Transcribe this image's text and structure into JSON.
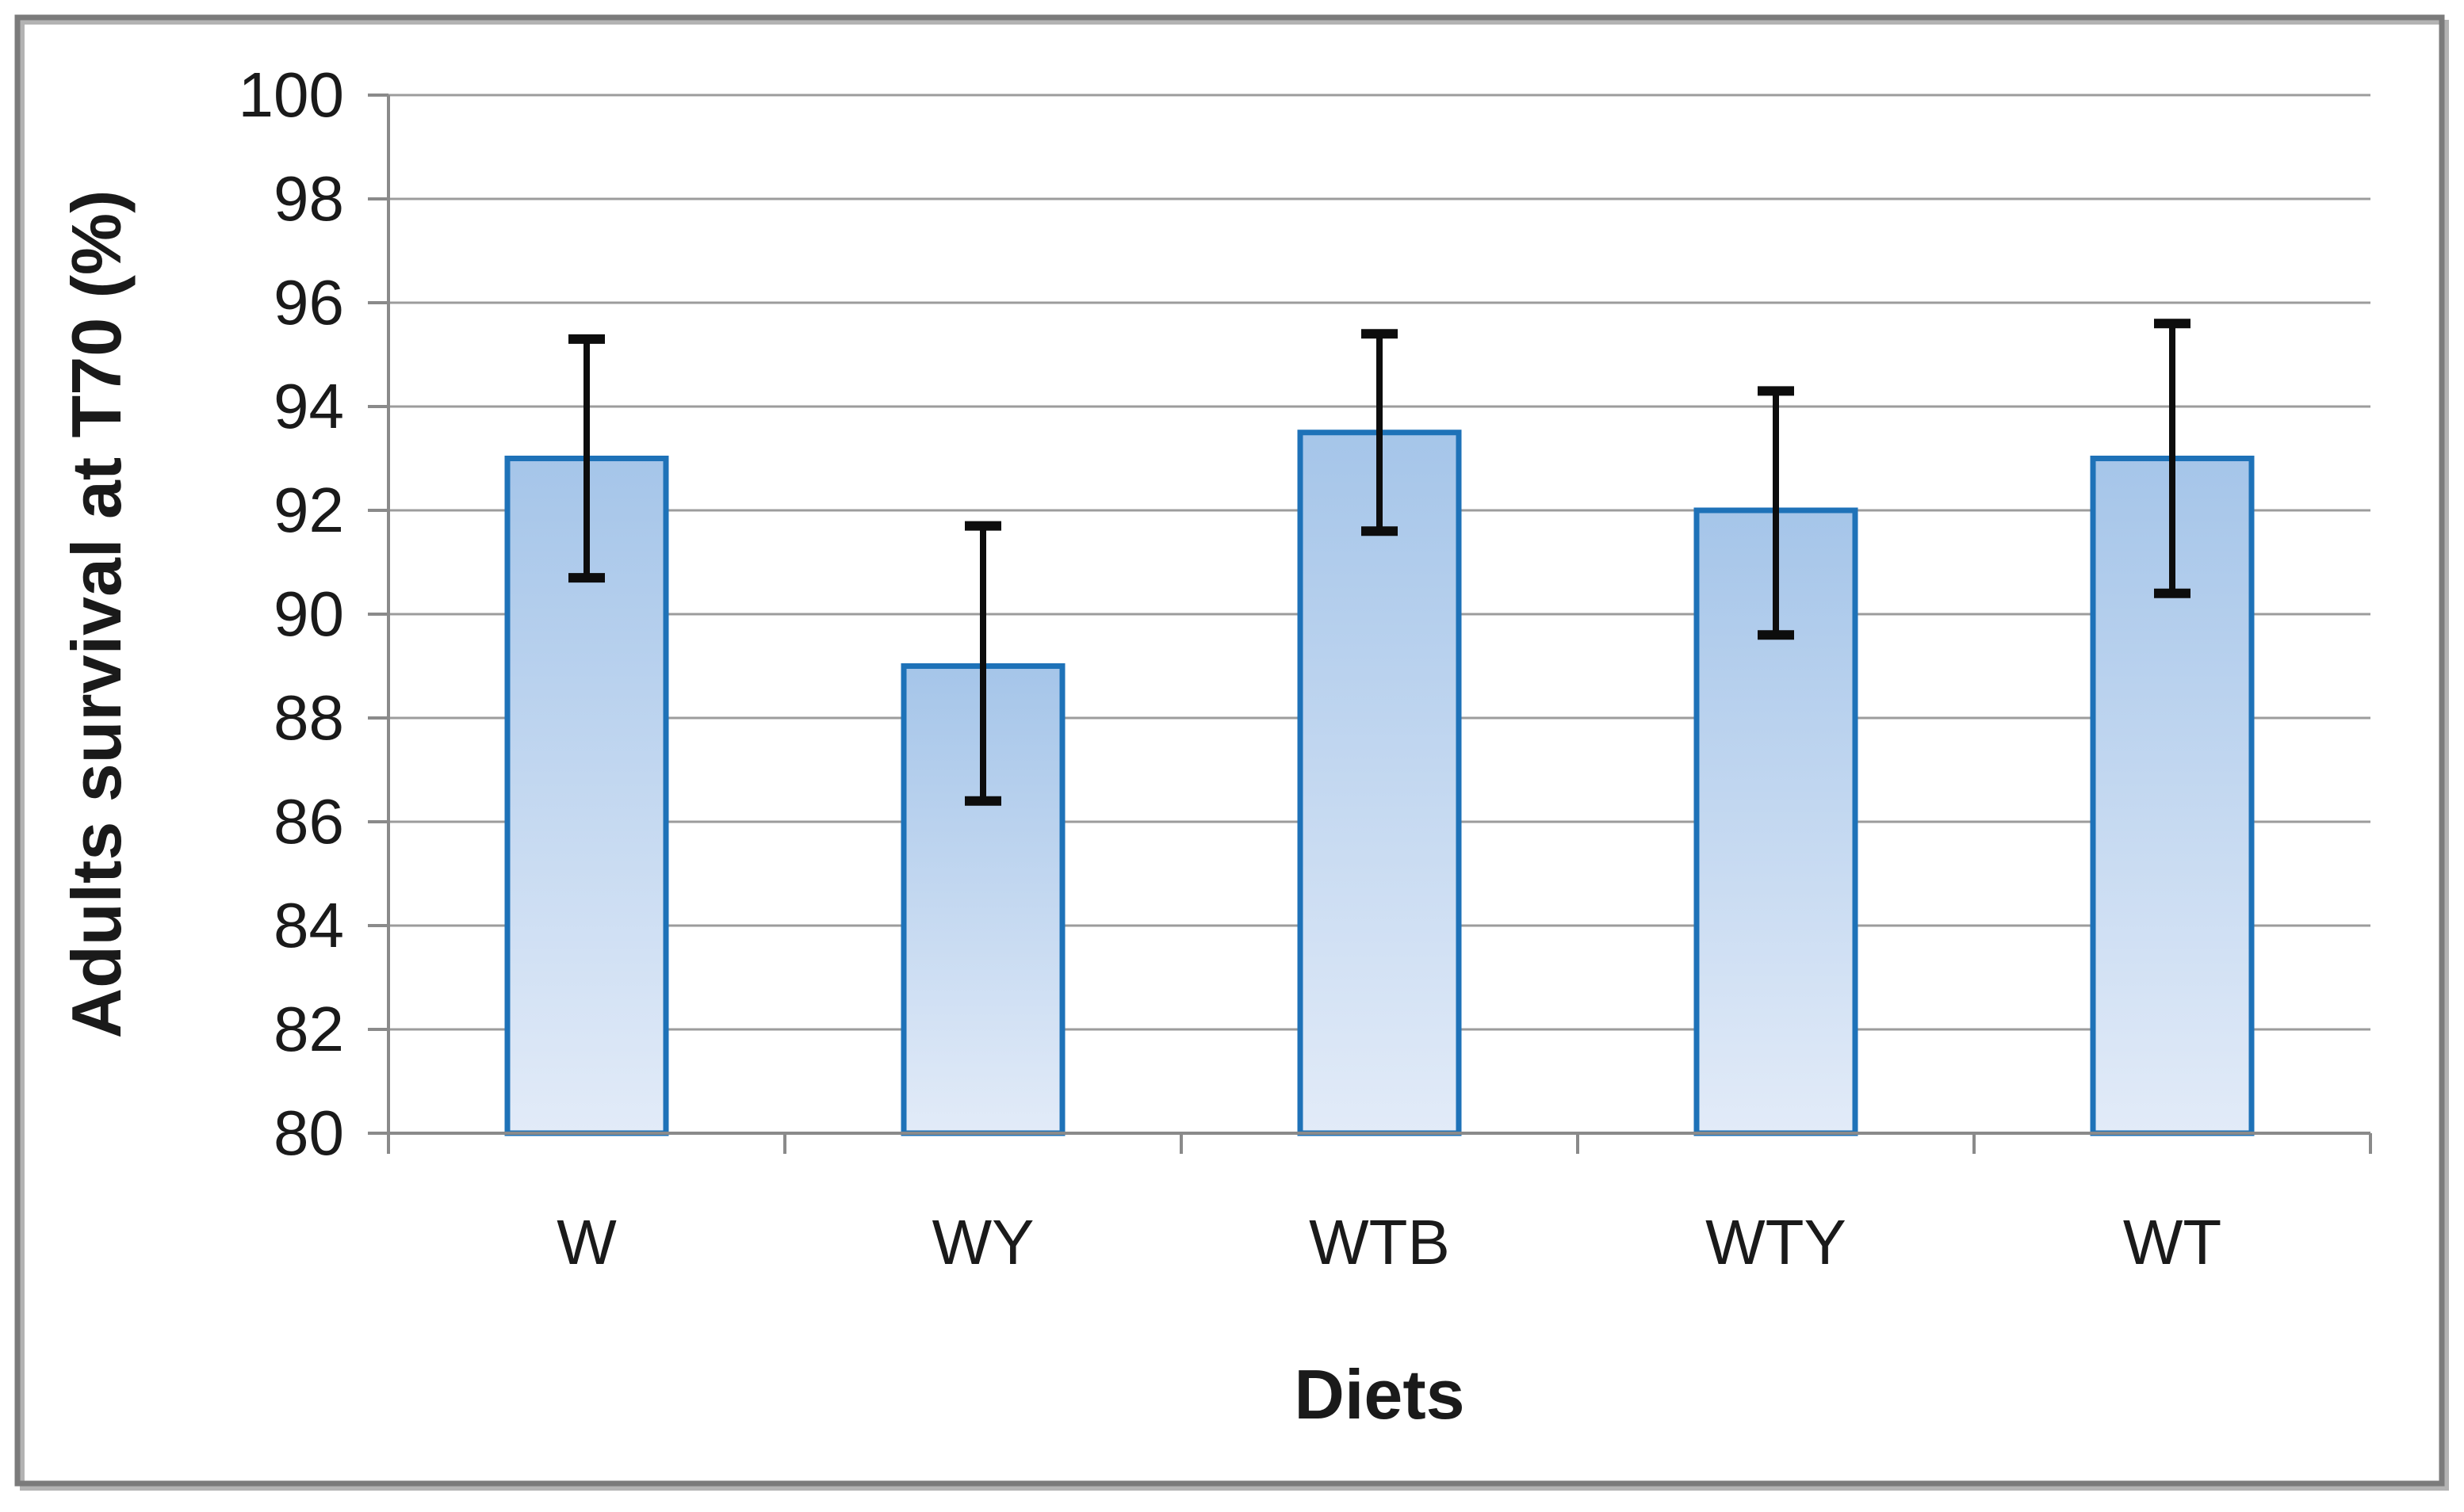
{
  "figure": {
    "background": "#ffffff",
    "frame_color": "#7b7b7b",
    "frame_shadow_color": "#b3b3b3"
  },
  "chart_data": {
    "type": "bar",
    "title": "",
    "categories": [
      "W",
      "WY",
      "WTB",
      "WTY",
      "WT"
    ],
    "values": [
      93.0,
      89.0,
      93.5,
      92.0,
      93.0
    ],
    "error_high": [
      95.3,
      91.7,
      95.4,
      94.3,
      95.6
    ],
    "error_low": [
      90.7,
      86.4,
      91.6,
      89.6,
      90.4
    ],
    "xlabel": "Diets",
    "ylabel": "Adults survival at T70 (%)",
    "ylim": [
      80,
      100
    ],
    "ytick_step": 2,
    "yticks": [
      100,
      98,
      96,
      94,
      92,
      90,
      88,
      86,
      84,
      82,
      80
    ],
    "grid": true,
    "legend": false,
    "colors": {
      "bar_fill_top": "#a5c5e9",
      "bar_fill_bottom": "#e2ebf8",
      "bar_border": "#1e72b8",
      "gridline": "#9c9c9c",
      "axis": "#8a8a8a",
      "error_bar": "#0d0d0d",
      "text": "#1a1a1a"
    }
  }
}
